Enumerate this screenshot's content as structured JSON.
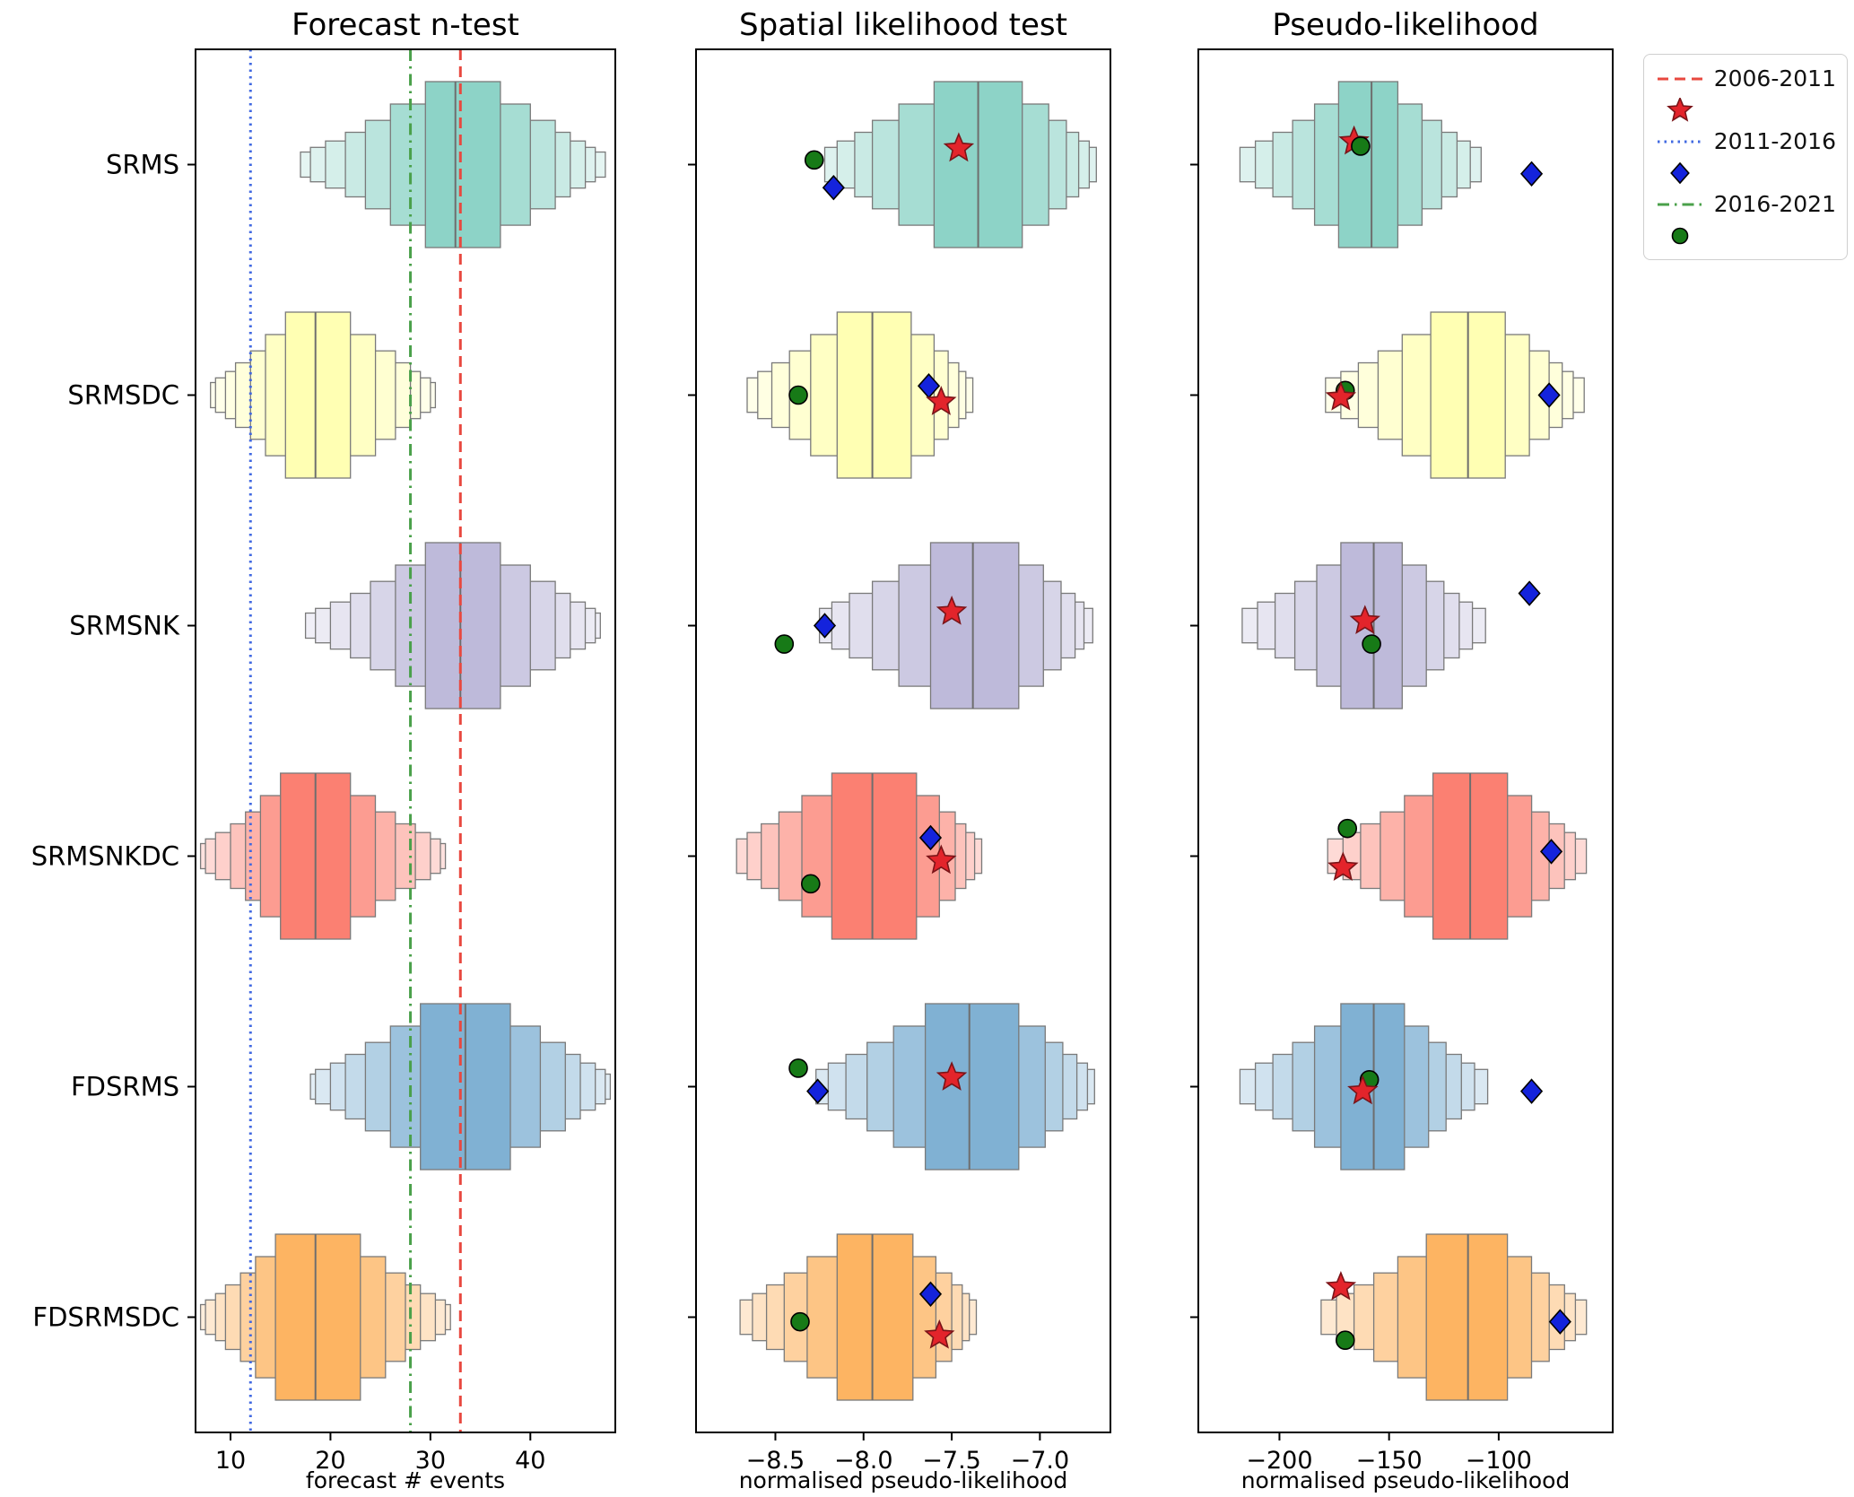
{
  "models": [
    "SRMS",
    "SRMSDC",
    "SRMSNK",
    "SRMSNKDC",
    "FDSRMS",
    "FDSRMSDC"
  ],
  "palette": [
    "#8dd3c7",
    "#ffffb3",
    "#bebada",
    "#fb8072",
    "#80b1d3",
    "#fdb462"
  ],
  "markers_style": {
    "star": {
      "fill": "#e3242b",
      "edge": "#7a1418"
    },
    "diamond": {
      "fill": "#1423dc",
      "edge": "#000000"
    },
    "circle": {
      "fill": "#177a17",
      "edge": "#000000"
    }
  },
  "legend": {
    "entries": [
      {
        "kind": "line",
        "dash": "dashed",
        "color": "#e8483f",
        "label": "2006-2011"
      },
      {
        "kind": "marker",
        "shape": "star",
        "fill": "#e3242b",
        "edge": "#7a1418",
        "label": ""
      },
      {
        "kind": "line",
        "dash": "dotted",
        "color": "#4169e1",
        "label": "2011-2016"
      },
      {
        "kind": "marker",
        "shape": "diamond",
        "fill": "#1423dc",
        "edge": "#000000",
        "label": ""
      },
      {
        "kind": "line",
        "dash": "dashdot",
        "color": "#4aa04a",
        "label": "2016-2021"
      },
      {
        "kind": "marker",
        "shape": "circle",
        "fill": "#177a17",
        "edge": "#000000",
        "label": ""
      }
    ]
  },
  "chart_data": [
    {
      "type": "boxen",
      "title": "Forecast n-test",
      "xlabel": "forecast # events",
      "xlim": [
        6.5,
        48.5
      ],
      "xticks": [
        {
          "v": 10,
          "label": "10"
        },
        {
          "v": 20,
          "label": "20"
        },
        {
          "v": 30,
          "label": "30"
        },
        {
          "v": 40,
          "label": "40"
        }
      ],
      "vlines": [
        {
          "x": 33,
          "dash": "dashed",
          "color": "#e8483f",
          "label": "2006-2011"
        },
        {
          "x": 12,
          "dash": "dotted",
          "color": "#4169e1",
          "label": "2011-2016"
        },
        {
          "x": 28,
          "dash": "dashdot",
          "color": "#4aa04a",
          "label": "2016-2021"
        }
      ],
      "rows": [
        {
          "model": "SRMS",
          "median": 32.5,
          "boxes": [
            [
              29.5,
              37.0
            ],
            [
              26.0,
              40.0
            ],
            [
              23.5,
              42.5
            ],
            [
              21.5,
              44.0
            ],
            [
              19.5,
              45.5
            ],
            [
              18.0,
              46.5
            ],
            [
              17.0,
              47.5
            ]
          ]
        },
        {
          "model": "SRMSDC",
          "median": 18.5,
          "boxes": [
            [
              15.5,
              22.0
            ],
            [
              13.5,
              24.5
            ],
            [
              12.0,
              26.5
            ],
            [
              10.5,
              28.0
            ],
            [
              9.5,
              29.0
            ],
            [
              8.5,
              30.0
            ],
            [
              8.0,
              30.5
            ]
          ]
        },
        {
          "model": "SRMSNK",
          "median": 33.0,
          "boxes": [
            [
              29.5,
              37.0
            ],
            [
              26.5,
              40.0
            ],
            [
              24.0,
              42.5
            ],
            [
              22.0,
              44.0
            ],
            [
              20.0,
              45.5
            ],
            [
              18.5,
              46.5
            ],
            [
              17.5,
              47.0
            ]
          ]
        },
        {
          "model": "SRMSNKDC",
          "median": 18.5,
          "boxes": [
            [
              15.0,
              22.0
            ],
            [
              13.0,
              24.5
            ],
            [
              11.5,
              26.5
            ],
            [
              10.0,
              28.5
            ],
            [
              8.5,
              30.0
            ],
            [
              7.5,
              31.0
            ],
            [
              7.0,
              31.5
            ]
          ]
        },
        {
          "model": "FDSRMS",
          "median": 33.5,
          "boxes": [
            [
              29.0,
              38.0
            ],
            [
              26.0,
              41.0
            ],
            [
              23.5,
              43.5
            ],
            [
              21.5,
              45.0
            ],
            [
              20.0,
              46.5
            ],
            [
              18.5,
              47.5
            ],
            [
              18.0,
              48.0
            ]
          ]
        },
        {
          "model": "FDSRMSDC",
          "median": 18.5,
          "boxes": [
            [
              14.5,
              23.0
            ],
            [
              12.5,
              25.5
            ],
            [
              11.0,
              27.5
            ],
            [
              9.5,
              29.0
            ],
            [
              8.5,
              30.5
            ],
            [
              7.5,
              31.5
            ],
            [
              7.0,
              32.0
            ]
          ]
        }
      ]
    },
    {
      "type": "boxen",
      "title": "Spatial likelihood test",
      "xlabel": "normalised pseudo-likelihood",
      "xlim": [
        -8.95,
        -6.6
      ],
      "xticks": [
        {
          "v": -8.5,
          "label": "−8.5"
        },
        {
          "v": -8.0,
          "label": "−8.0"
        },
        {
          "v": -7.5,
          "label": "−7.5"
        },
        {
          "v": -7.0,
          "label": "−7.0"
        }
      ],
      "vlines": [],
      "rows": [
        {
          "model": "SRMS",
          "median": -7.35,
          "boxes": [
            [
              -7.6,
              -7.1
            ],
            [
              -7.8,
              -6.95
            ],
            [
              -7.95,
              -6.85
            ],
            [
              -8.05,
              -6.78
            ],
            [
              -8.15,
              -6.72
            ],
            [
              -8.22,
              -6.68
            ]
          ],
          "markers": [
            {
              "shape": "circle",
              "x": -8.28,
              "dy": -0.02
            },
            {
              "shape": "diamond",
              "x": -8.17,
              "dy": 0.1
            },
            {
              "shape": "star",
              "x": -7.46,
              "dy": -0.07
            }
          ]
        },
        {
          "model": "SRMSDC",
          "median": -7.95,
          "boxes": [
            [
              -8.15,
              -7.73
            ],
            [
              -8.3,
              -7.6
            ],
            [
              -8.42,
              -7.52
            ],
            [
              -8.52,
              -7.46
            ],
            [
              -8.6,
              -7.42
            ],
            [
              -8.66,
              -7.38
            ]
          ],
          "markers": [
            {
              "shape": "circle",
              "x": -8.37,
              "dy": 0.0
            },
            {
              "shape": "diamond",
              "x": -7.63,
              "dy": -0.04
            },
            {
              "shape": "star",
              "x": -7.56,
              "dy": 0.03
            }
          ]
        },
        {
          "model": "SRMSNK",
          "median": -7.38,
          "boxes": [
            [
              -7.62,
              -7.12
            ],
            [
              -7.8,
              -6.98
            ],
            [
              -7.95,
              -6.88
            ],
            [
              -8.08,
              -6.8
            ],
            [
              -8.18,
              -6.75
            ],
            [
              -8.25,
              -6.7
            ]
          ],
          "markers": [
            {
              "shape": "circle",
              "x": -8.45,
              "dy": 0.08
            },
            {
              "shape": "diamond",
              "x": -8.22,
              "dy": 0.0
            },
            {
              "shape": "star",
              "x": -7.5,
              "dy": -0.06
            }
          ]
        },
        {
          "model": "SRMSNKDC",
          "median": -7.95,
          "boxes": [
            [
              -8.18,
              -7.7
            ],
            [
              -8.35,
              -7.57
            ],
            [
              -8.48,
              -7.48
            ],
            [
              -8.58,
              -7.42
            ],
            [
              -8.66,
              -7.37
            ],
            [
              -8.72,
              -7.33
            ]
          ],
          "markers": [
            {
              "shape": "circle",
              "x": -8.3,
              "dy": 0.12
            },
            {
              "shape": "diamond",
              "x": -7.62,
              "dy": -0.08
            },
            {
              "shape": "star",
              "x": -7.56,
              "dy": 0.02
            }
          ]
        },
        {
          "model": "FDSRMS",
          "median": -7.4,
          "boxes": [
            [
              -7.65,
              -7.12
            ],
            [
              -7.83,
              -6.97
            ],
            [
              -7.98,
              -6.87
            ],
            [
              -8.1,
              -6.79
            ],
            [
              -8.2,
              -6.73
            ],
            [
              -8.27,
              -6.69
            ]
          ],
          "markers": [
            {
              "shape": "circle",
              "x": -8.37,
              "dy": -0.08
            },
            {
              "shape": "diamond",
              "x": -8.26,
              "dy": 0.02
            },
            {
              "shape": "star",
              "x": -7.5,
              "dy": -0.04
            }
          ]
        },
        {
          "model": "FDSRMSDC",
          "median": -7.95,
          "boxes": [
            [
              -8.15,
              -7.72
            ],
            [
              -8.32,
              -7.59
            ],
            [
              -8.45,
              -7.5
            ],
            [
              -8.55,
              -7.44
            ],
            [
              -8.63,
              -7.4
            ],
            [
              -8.7,
              -7.36
            ]
          ],
          "markers": [
            {
              "shape": "circle",
              "x": -8.36,
              "dy": 0.02
            },
            {
              "shape": "diamond",
              "x": -7.62,
              "dy": -0.1
            },
            {
              "shape": "star",
              "x": -7.57,
              "dy": 0.08
            }
          ]
        }
      ]
    },
    {
      "type": "boxen",
      "title": "Pseudo-likelihood",
      "xlabel": "normalised pseudo-likelihood",
      "xlim": [
        -237,
        -48
      ],
      "xticks": [
        {
          "v": -200,
          "label": "−200"
        },
        {
          "v": -150,
          "label": "−150"
        },
        {
          "v": -100,
          "label": "−100"
        }
      ],
      "vlines": [],
      "rows": [
        {
          "model": "SRMS",
          "median": -158,
          "boxes": [
            [
              -173,
              -146
            ],
            [
              -184,
              -135
            ],
            [
              -194,
              -126
            ],
            [
              -203,
              -119
            ],
            [
              -211,
              -113
            ],
            [
              -218,
              -108
            ]
          ],
          "markers": [
            {
              "shape": "star",
              "x": -166,
              "dy": -0.1
            },
            {
              "shape": "circle",
              "x": -163,
              "dy": -0.08
            },
            {
              "shape": "diamond",
              "x": -85,
              "dy": 0.04
            }
          ]
        },
        {
          "model": "SRMSDC",
          "median": -114,
          "boxes": [
            [
              -131,
              -97
            ],
            [
              -144,
              -86
            ],
            [
              -155,
              -77
            ],
            [
              -164,
              -71
            ],
            [
              -172,
              -66
            ],
            [
              -179,
              -61
            ]
          ],
          "markers": [
            {
              "shape": "circle",
              "x": -170,
              "dy": -0.02
            },
            {
              "shape": "star",
              "x": -172,
              "dy": 0.01
            },
            {
              "shape": "diamond",
              "x": -77,
              "dy": 0.0
            }
          ]
        },
        {
          "model": "SRMSNK",
          "median": -157,
          "boxes": [
            [
              -172,
              -144
            ],
            [
              -183,
              -133
            ],
            [
              -193,
              -125
            ],
            [
              -202,
              -118
            ],
            [
              -210,
              -112
            ],
            [
              -217,
              -106
            ]
          ],
          "markers": [
            {
              "shape": "diamond",
              "x": -86,
              "dy": -0.14
            },
            {
              "shape": "star",
              "x": -161,
              "dy": -0.02
            },
            {
              "shape": "circle",
              "x": -158,
              "dy": 0.08
            }
          ]
        },
        {
          "model": "SRMSNKDC",
          "median": -113,
          "boxes": [
            [
              -130,
              -96
            ],
            [
              -143,
              -85
            ],
            [
              -154,
              -77
            ],
            [
              -163,
              -70
            ],
            [
              -171,
              -65
            ],
            [
              -178,
              -60
            ]
          ],
          "markers": [
            {
              "shape": "circle",
              "x": -169,
              "dy": -0.12
            },
            {
              "shape": "star",
              "x": -171,
              "dy": 0.05
            },
            {
              "shape": "diamond",
              "x": -76,
              "dy": -0.02
            }
          ]
        },
        {
          "model": "FDSRMS",
          "median": -157,
          "boxes": [
            [
              -172,
              -143
            ],
            [
              -184,
              -132
            ],
            [
              -194,
              -124
            ],
            [
              -203,
              -117
            ],
            [
              -211,
              -111
            ],
            [
              -218,
              -105
            ]
          ],
          "markers": [
            {
              "shape": "circle",
              "x": -159,
              "dy": -0.03
            },
            {
              "shape": "star",
              "x": -162,
              "dy": 0.02
            },
            {
              "shape": "diamond",
              "x": -85,
              "dy": 0.02
            }
          ]
        },
        {
          "model": "FDSRMSDC",
          "median": -114,
          "boxes": [
            [
              -133,
              -96
            ],
            [
              -146,
              -85
            ],
            [
              -157,
              -77
            ],
            [
              -166,
              -70
            ],
            [
              -174,
              -65
            ],
            [
              -181,
              -60
            ]
          ],
          "markers": [
            {
              "shape": "star",
              "x": -172,
              "dy": -0.13
            },
            {
              "shape": "circle",
              "x": -170,
              "dy": 0.1
            },
            {
              "shape": "diamond",
              "x": -72,
              "dy": 0.02
            }
          ]
        }
      ]
    }
  ]
}
